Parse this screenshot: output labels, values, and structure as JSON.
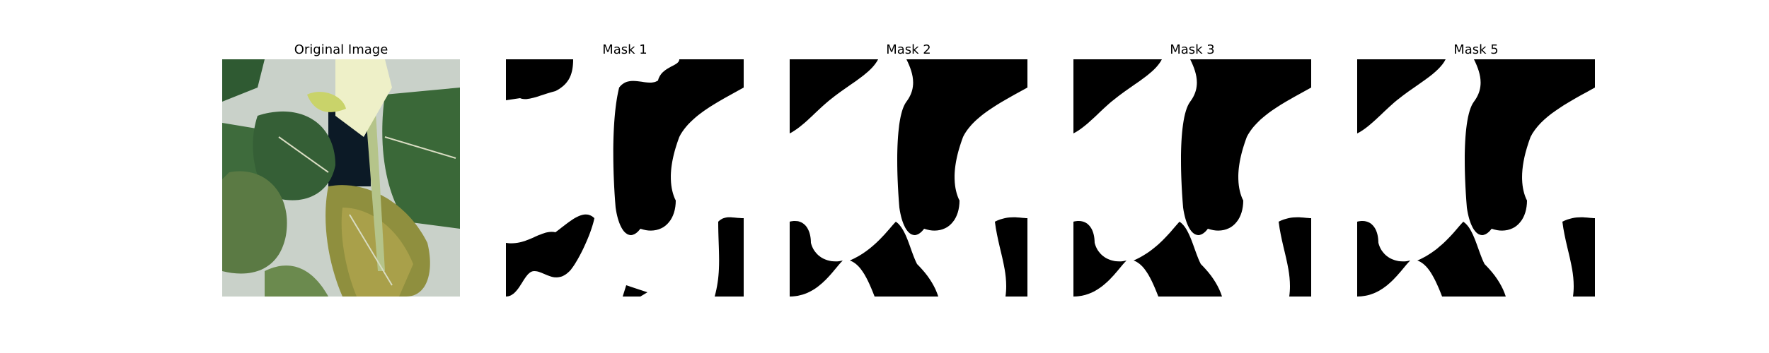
{
  "figure": {
    "panels": [
      {
        "id": "original",
        "title": "Original Image",
        "kind": "photo",
        "description_icon": "plant-photo"
      },
      {
        "id": "mask1",
        "title": "Mask 1",
        "kind": "mask"
      },
      {
        "id": "mask2",
        "title": "Mask 2",
        "kind": "mask"
      },
      {
        "id": "mask3",
        "title": "Mask 3",
        "kind": "mask"
      },
      {
        "id": "mask5",
        "title": "Mask 5",
        "kind": "mask"
      }
    ],
    "colors": {
      "background": "#ffffff",
      "mask_foreground": "#ffffff",
      "mask_background": "#000000",
      "leaf_dark": "#2f5a32",
      "leaf_mid": "#4d7d45",
      "leaf_yellow": "#a9a04a",
      "flower": "#eef0c8",
      "bg_gray": "#c9d1c9"
    }
  }
}
